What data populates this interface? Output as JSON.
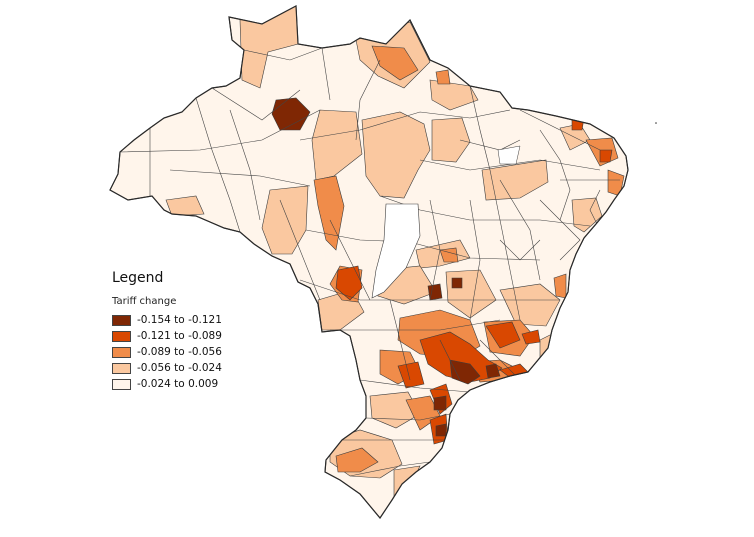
{
  "legend": {
    "title": "Legend",
    "subtitle": "Tariff change",
    "classes": [
      {
        "label": "-0.154 to -0.121",
        "color": "#7f2704"
      },
      {
        "label": "-0.121 to -0.089",
        "color": "#d94801"
      },
      {
        "label": "-0.089 to -0.056",
        "color": "#f08c4a"
      },
      {
        "label": "-0.056 to -0.024",
        "color": "#fac8a0"
      },
      {
        "label": "-0.024 to 0.009",
        "color": "#fff5eb"
      }
    ]
  },
  "map": {
    "outline_color": "#3c3c3c",
    "subject": "Brazil municipalities choropleth"
  }
}
